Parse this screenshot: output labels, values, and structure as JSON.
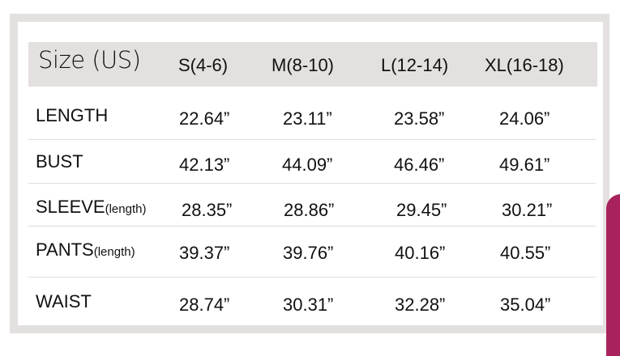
{
  "header": {
    "label": "Size (US)",
    "sizes": [
      "S(4-6)",
      "M(8-10)",
      "L(12-14)",
      "XL(16-18)"
    ]
  },
  "rows": [
    {
      "name": "LENGTH",
      "suffix": "",
      "values": [
        "22.64”",
        "23.11”",
        "23.58”",
        "24.06”"
      ]
    },
    {
      "name": "BUST",
      "suffix": "",
      "values": [
        "42.13”",
        "44.09”",
        "46.46”",
        "49.61”"
      ]
    },
    {
      "name": "SLEEVE",
      "suffix": "(length)",
      "values": [
        "28.35”",
        "28.86”",
        "29.45”",
        "30.21”"
      ]
    },
    {
      "name": "PANTS",
      "suffix": "(length)",
      "values": [
        "39.37”",
        "39.76”",
        "40.16”",
        "40.55”"
      ]
    },
    {
      "name": "WAIST",
      "suffix": "",
      "values": [
        "28.74”",
        "30.31”",
        "32.28”",
        "35.04”"
      ]
    }
  ],
  "colors": {
    "frame": "#e4e0df",
    "garment": "#a8235e"
  }
}
